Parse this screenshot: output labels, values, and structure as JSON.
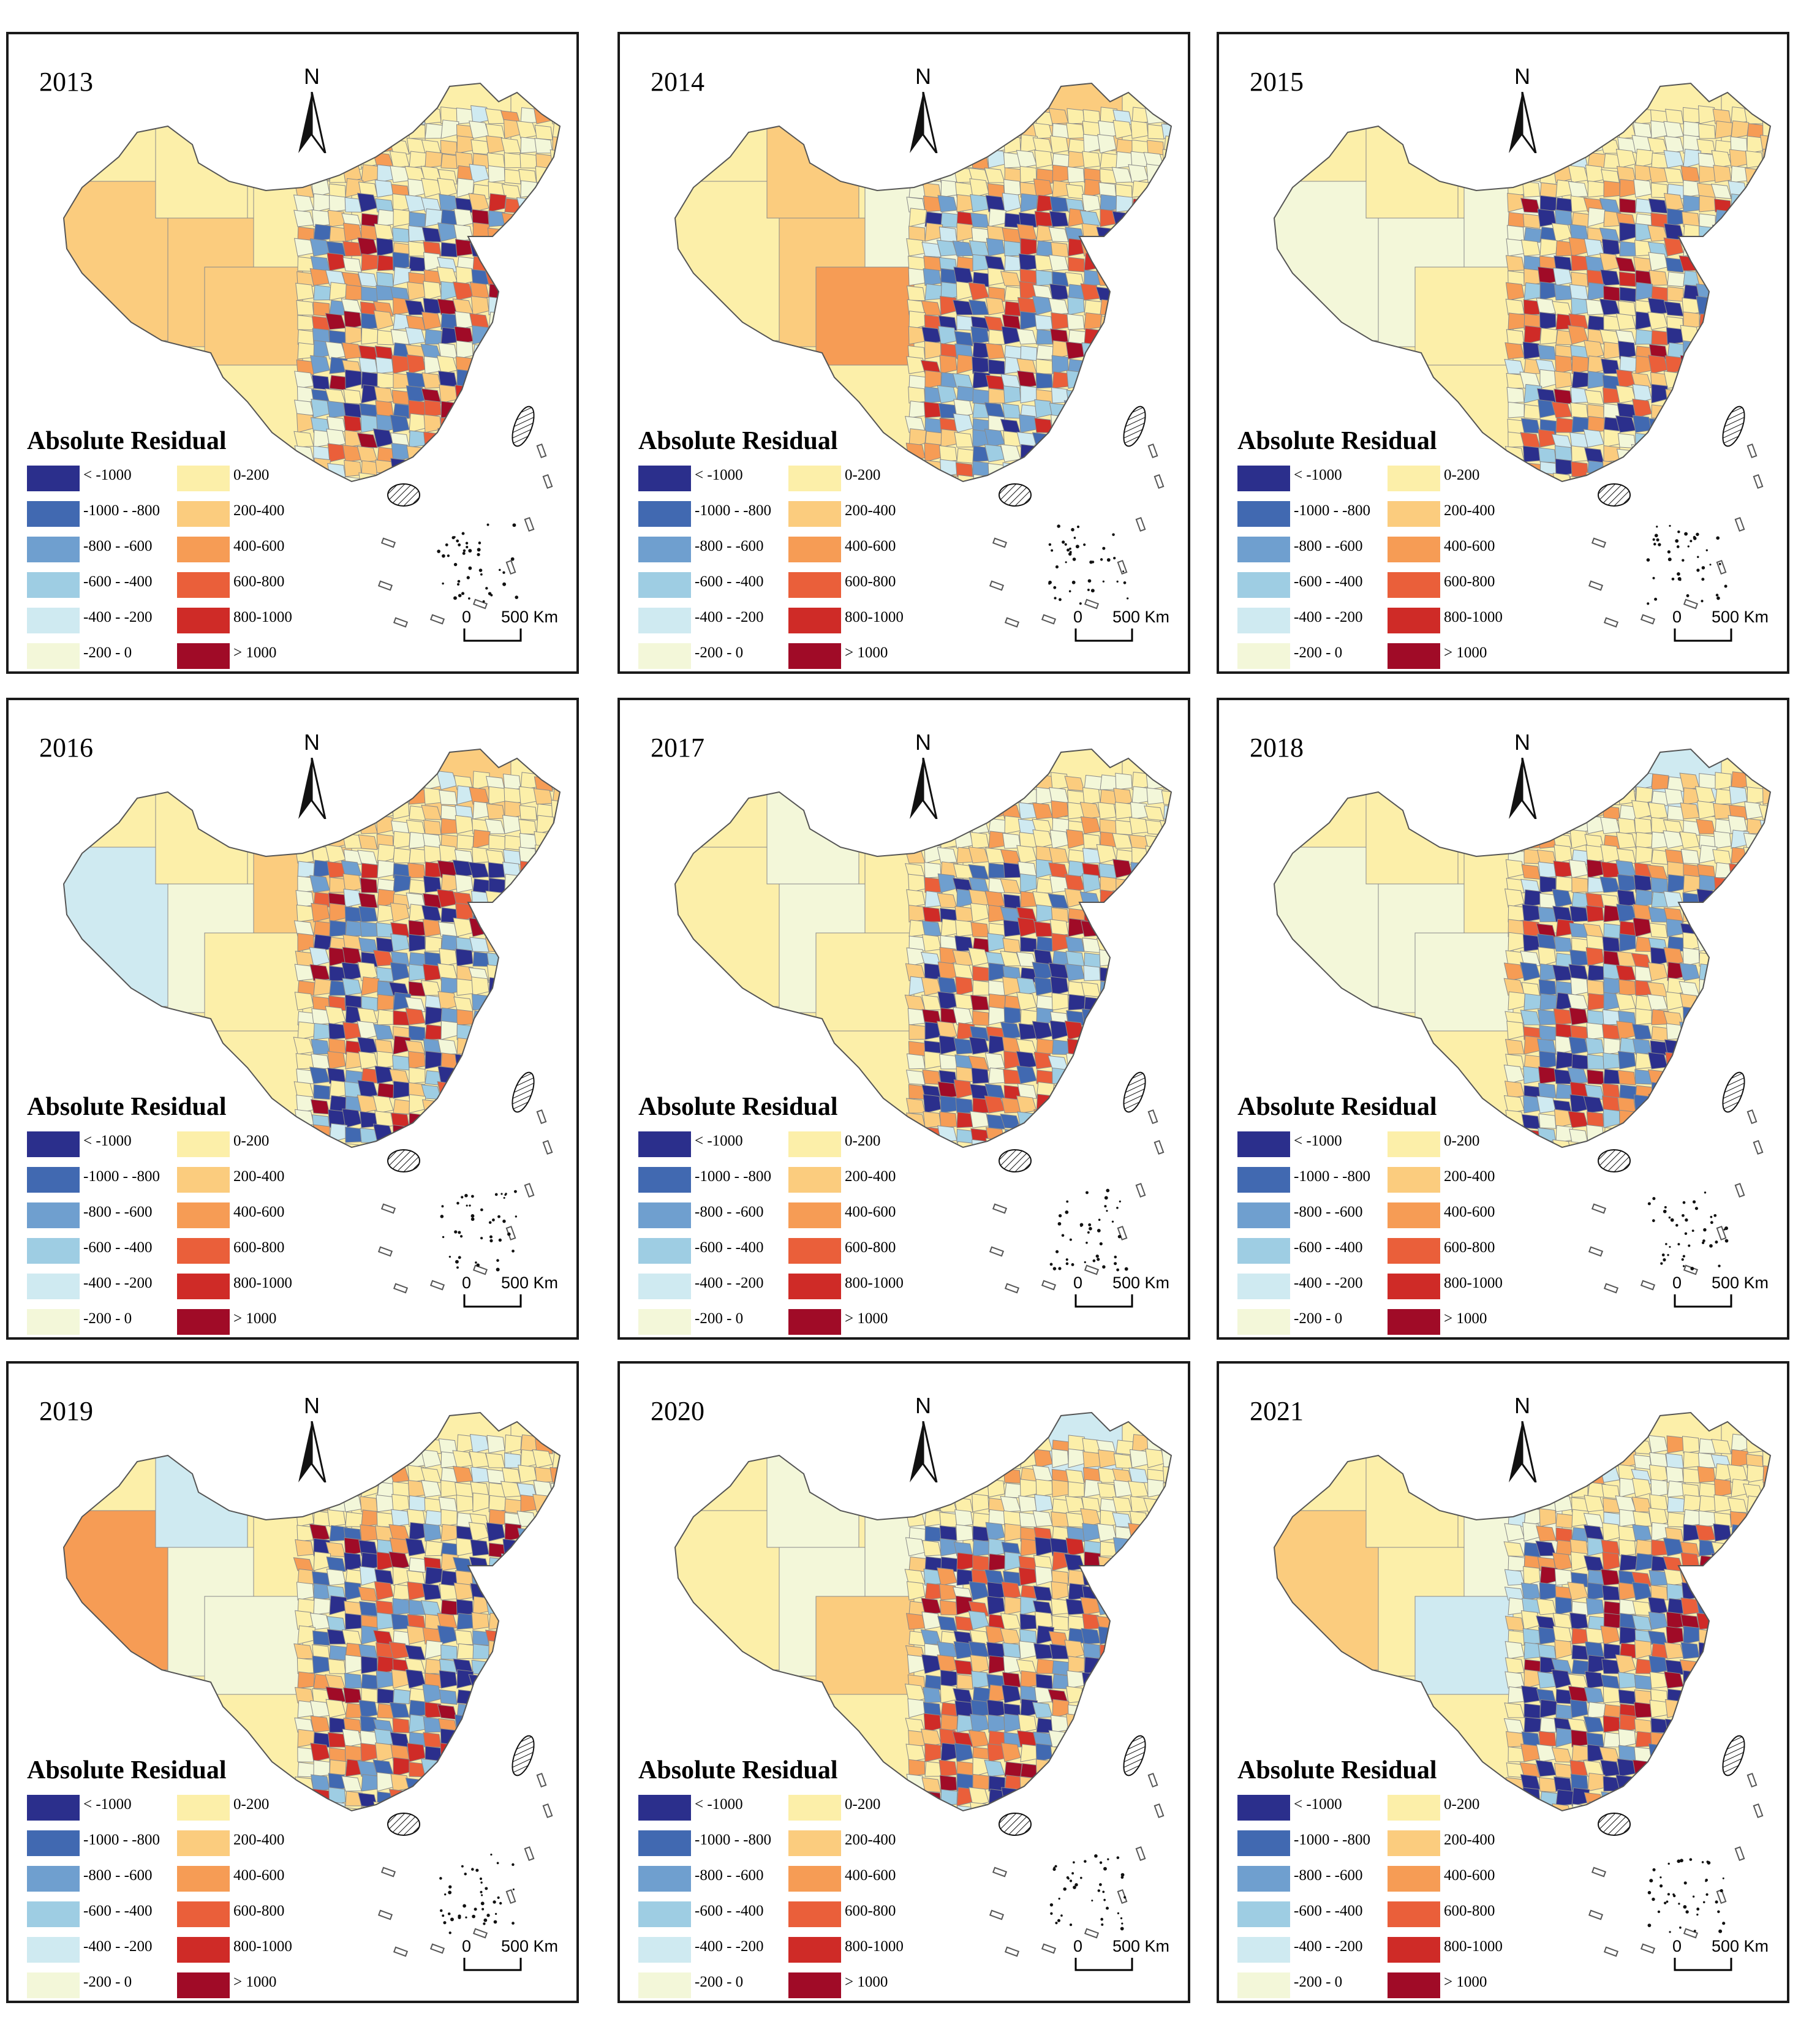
{
  "figure": {
    "legend_title": "Absolute Residual",
    "north_label": "N",
    "scale_zero": "0",
    "scale_distance": "500 Km",
    "legend": [
      {
        "label": "< -1000",
        "color": "#2b2f8c"
      },
      {
        "label": "-1000 - -800",
        "color": "#4169b1"
      },
      {
        "label": "-800 - -600",
        "color": "#6f9fcf"
      },
      {
        "label": "-600 - -400",
        "color": "#9ecde3"
      },
      {
        "label": "-400 - -200",
        "color": "#cfeaf1"
      },
      {
        "label": "-200 - 0",
        "color": "#f3f7d9"
      },
      {
        "label": "0-200",
        "color": "#fcefa9"
      },
      {
        "label": "200-400",
        "color": "#fbcc7e"
      },
      {
        "label": "400-600",
        "color": "#f69c55"
      },
      {
        "label": "600-800",
        "color": "#ea5f3a"
      },
      {
        "label": "800-1000",
        "color": "#cf2b27"
      },
      {
        "label": "> 1000",
        "color": "#a00b27"
      }
    ]
  },
  "panels": [
    {
      "year": "2013"
    },
    {
      "year": "2014"
    },
    {
      "year": "2015"
    },
    {
      "year": "2016"
    },
    {
      "year": "2017"
    },
    {
      "year": "2018"
    },
    {
      "year": "2019"
    },
    {
      "year": "2020"
    },
    {
      "year": "2021"
    }
  ]
}
